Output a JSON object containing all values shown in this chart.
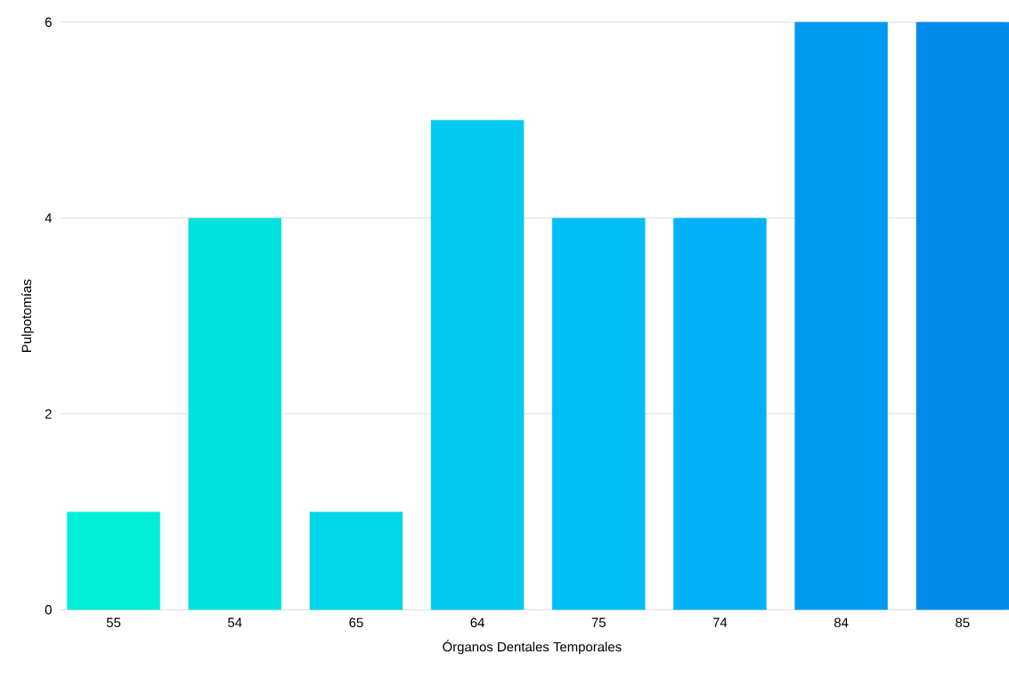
{
  "chart_data": {
    "type": "bar",
    "xlabel": "Órganos Dentales Temporales",
    "ylabel": "Pulpotomías",
    "categories": [
      "55",
      "54",
      "65",
      "64",
      "75",
      "74",
      "84",
      "85"
    ],
    "values": [
      1,
      4,
      1,
      5,
      4,
      4,
      6,
      6
    ],
    "colors": [
      "#00efd6",
      "#00e2dc",
      "#00d6e8",
      "#00c9f2",
      "#00bdf6",
      "#00b1f8",
      "#0099f2",
      "#008bec"
    ],
    "ylim": [
      0,
      6
    ],
    "yticks": [
      0,
      2,
      4,
      6
    ],
    "grid": "y"
  }
}
